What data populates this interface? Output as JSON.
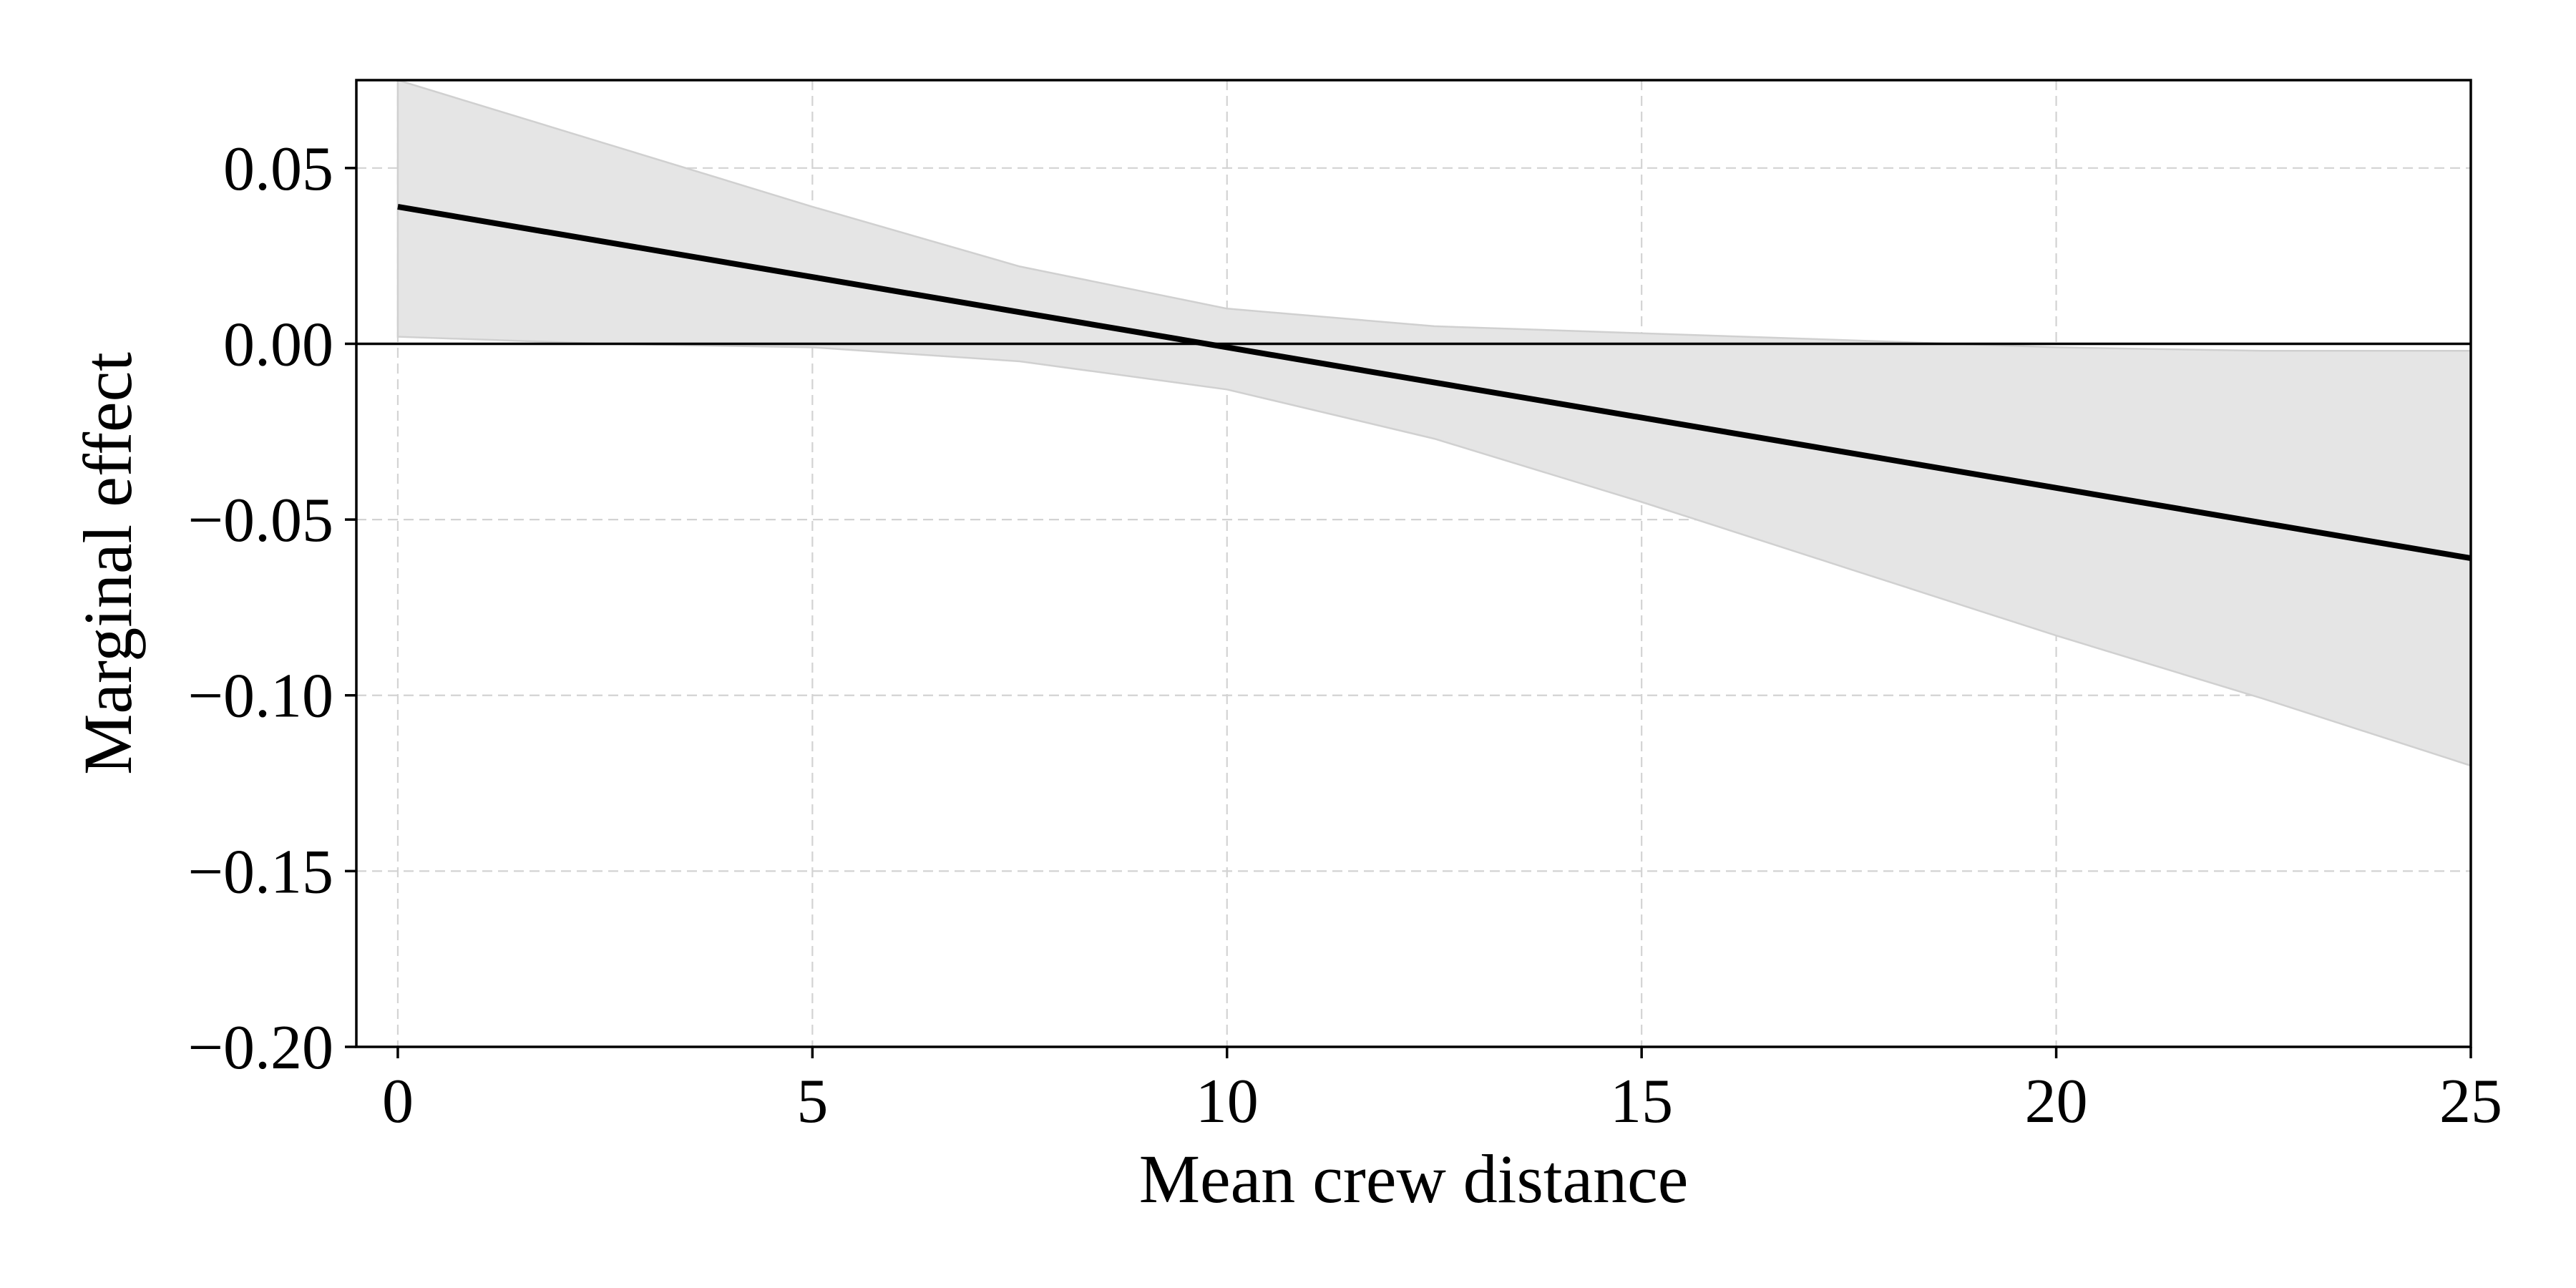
{
  "chart_data": {
    "type": "line",
    "title": "",
    "xlabel": "Mean crew distance",
    "ylabel": "Marginal effect",
    "xlim": [
      -0.5,
      25
    ],
    "ylim": [
      -0.2,
      0.075
    ],
    "xticks": [
      0,
      5,
      10,
      15,
      20,
      25
    ],
    "yticks": [
      0.05,
      0.0,
      -0.05,
      -0.1,
      -0.15,
      -0.2
    ],
    "xtick_labels": [
      "0",
      "5",
      "10",
      "15",
      "20",
      "25"
    ],
    "ytick_labels": [
      "0.05",
      "0.00",
      "−0.05",
      "−0.10",
      "−0.15",
      "−0.20"
    ],
    "grid": true,
    "reference_line_y": 0,
    "series": [
      {
        "x": [
          0,
          25
        ],
        "y": [
          0.039,
          -0.061
        ]
      }
    ],
    "confidence_band": {
      "x": [
        0,
        2.5,
        5,
        7.5,
        10,
        12.5,
        15,
        17.5,
        20,
        22.5,
        25
      ],
      "lower": [
        0.002,
        0.0,
        -0.001,
        -0.005,
        -0.013,
        -0.027,
        -0.045,
        -0.064,
        -0.083,
        -0.101,
        -0.12
      ],
      "upper": [
        0.075,
        0.057,
        0.039,
        0.022,
        0.01,
        0.005,
        0.003,
        0.001,
        -0.001,
        -0.002,
        -0.002
      ]
    },
    "colors": {
      "line": "#000000",
      "band": "#e5e5e5",
      "band_edge": "#d0d0d0",
      "grid": "#d3d3d3"
    }
  }
}
